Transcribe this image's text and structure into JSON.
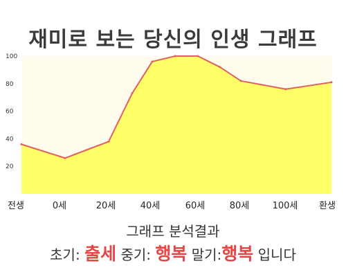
{
  "title": "재미로 보는 당신의 인생 그래프",
  "chart_data": {
    "type": "area",
    "x": [
      "전생",
      "0세",
      "20세",
      "40세",
      "60세",
      "80세",
      "100세",
      "환생"
    ],
    "points": [
      {
        "x": "전생",
        "y": 36
      },
      {
        "x": "0세",
        "y": 26
      },
      {
        "x": "20세",
        "y": 38
      },
      {
        "x": "30세",
        "y": 73
      },
      {
        "x": "40세",
        "y": 96
      },
      {
        "x": "50세",
        "y": 100
      },
      {
        "x": "60세",
        "y": 100
      },
      {
        "x": "70세",
        "y": 92
      },
      {
        "x": "80세",
        "y": 82
      },
      {
        "x": "100세",
        "y": 76
      },
      {
        "x": "환생",
        "y": 81
      }
    ],
    "yticks": [
      20,
      40,
      60,
      80,
      100
    ],
    "ylim": [
      0,
      100
    ],
    "fill_color": "#ffff66",
    "line_color": "#e06060",
    "background_color": "#fffcee"
  },
  "result": {
    "heading": "그래프 분석결과",
    "early_label": "초기:",
    "early_value": "출세",
    "middle_label": "중기:",
    "middle_value": "행복",
    "late_label": "말기:",
    "late_value": "행복",
    "ending": "입니다"
  }
}
